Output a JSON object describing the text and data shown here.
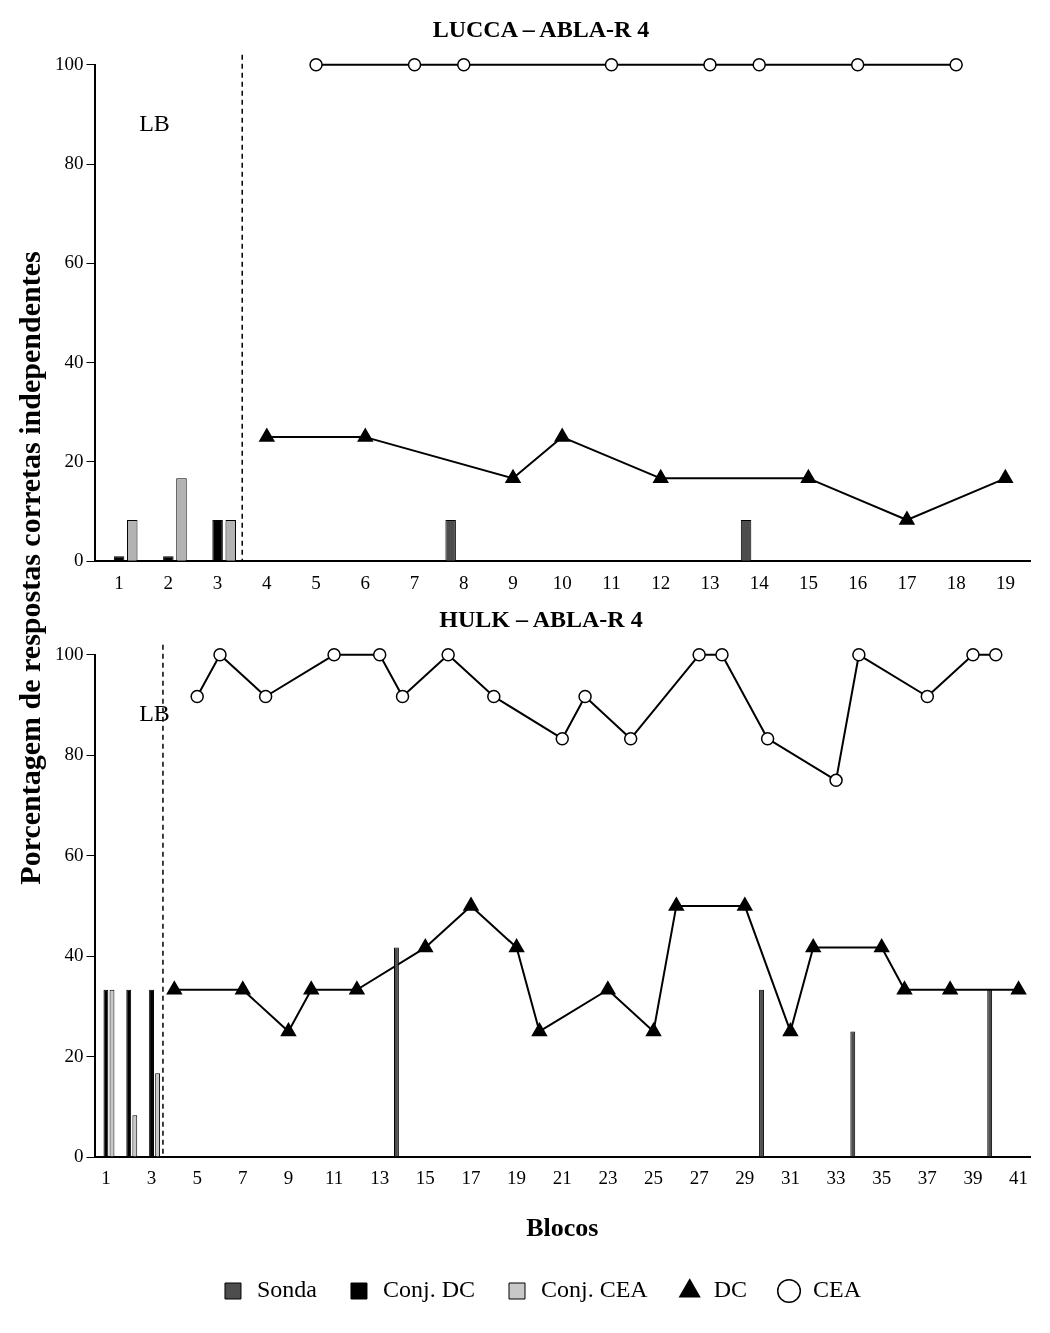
{
  "chart_data": [
    {
      "type": "line",
      "title": "LUCCA – ABLA-R 4",
      "ylabel": "Porcentagem de respostas corretas independentes",
      "xlim": [
        0.5,
        19.5
      ],
      "xticks": [
        1,
        2,
        3,
        4,
        5,
        6,
        7,
        8,
        9,
        10,
        11,
        12,
        13,
        14,
        15,
        16,
        17,
        18,
        19
      ],
      "ylim": [
        0,
        100
      ],
      "yticks": [
        0,
        20,
        40,
        60,
        80,
        100
      ],
      "grid": false,
      "legend": false,
      "ref_lines": [
        {
          "axis": "x",
          "value": 3.5,
          "line_style": "dashed",
          "color": "#000000"
        }
      ],
      "annotations": [
        "LB"
      ],
      "series": [
        {
          "type": "bar",
          "color": "#4d4d4d",
          "x": [
            8,
            14
          ],
          "values": [
            8.3,
            8.3
          ]
        },
        {
          "type": "bar",
          "color": "#000000",
          "x": [
            1,
            2,
            3
          ],
          "values": [
            1,
            1,
            8.3
          ]
        },
        {
          "type": "bar",
          "color": "#b3b3b3",
          "x": [
            1,
            2,
            3
          ],
          "values": [
            8.3,
            16.7,
            8.3
          ]
        },
        {
          "color": "#000000",
          "marker": "triangle",
          "x": [
            4,
            6,
            9,
            10,
            12,
            15,
            17,
            19
          ],
          "values": [
            25,
            25,
            16.7,
            25,
            16.7,
            16.7,
            8.3,
            16.7
          ]
        },
        {
          "color": "#000000",
          "marker": "circle",
          "x": [
            5,
            7,
            8,
            11,
            13,
            14,
            16,
            18
          ],
          "values": [
            100,
            100,
            100,
            100,
            100,
            100,
            100,
            100
          ]
        }
      ]
    },
    {
      "type": "line",
      "title": "HULK – ABLA-R 4",
      "xlabel": "Blocos",
      "xlim": [
        0.5,
        41.5
      ],
      "xticks": [
        1,
        3,
        5,
        7,
        9,
        11,
        13,
        15,
        17,
        19,
        21,
        23,
        25,
        27,
        29,
        31,
        33,
        35,
        37,
        39,
        41
      ],
      "ylim": [
        0,
        100
      ],
      "yticks": [
        0,
        20,
        40,
        60,
        80,
        100
      ],
      "grid": false,
      "legend": "bottom",
      "ref_lines": [
        {
          "axis": "x",
          "value": 3.5,
          "line_style": "dashed",
          "color": "#000000"
        }
      ],
      "annotations": [
        "LB"
      ],
      "series": [
        {
          "name": "Sonda",
          "type": "bar",
          "color": "#4d4d4d",
          "x": [
            14,
            30,
            34,
            40
          ],
          "values": [
            41.7,
            33.3,
            25,
            33.3
          ]
        },
        {
          "name": "Conj. DC",
          "type": "bar",
          "color": "#000000",
          "x": [
            1,
            2,
            3
          ],
          "values": [
            33.3,
            33.3,
            33.3
          ]
        },
        {
          "name": "Conj. CEA",
          "type": "bar",
          "color": "#c8c8c8",
          "x": [
            1,
            2,
            3
          ],
          "values": [
            33.3,
            8.3,
            16.7
          ]
        },
        {
          "name": "DC",
          "color": "#000000",
          "marker": "triangle",
          "x": [
            4,
            7,
            9,
            10,
            12,
            15,
            17,
            19,
            20,
            23,
            25,
            26,
            29,
            31,
            32,
            35,
            36,
            38,
            41
          ],
          "values": [
            33.3,
            33.3,
            25,
            33.3,
            33.3,
            41.7,
            50,
            41.7,
            25,
            33.3,
            25,
            50,
            50,
            25,
            41.7,
            41.7,
            33.3,
            33.3,
            33.3
          ]
        },
        {
          "name": "CEA",
          "color": "#000000",
          "marker": "circle",
          "x": [
            5,
            6,
            8,
            11,
            13,
            14,
            16,
            18,
            21,
            22,
            24,
            27,
            28,
            30,
            33,
            34,
            37,
            39,
            40
          ],
          "values": [
            91.7,
            100,
            91.7,
            100,
            100,
            91.7,
            100,
            91.7,
            83.3,
            91.7,
            83.3,
            100,
            100,
            83.3,
            75,
            100,
            91.7,
            100,
            100
          ]
        }
      ]
    }
  ]
}
